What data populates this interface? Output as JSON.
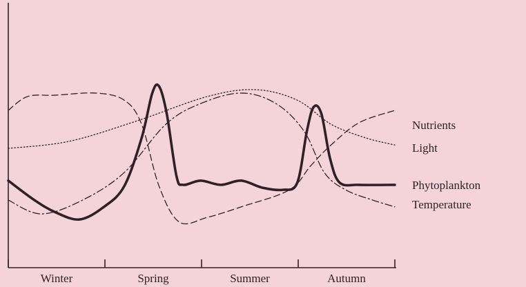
{
  "chart_data": {
    "type": "line",
    "categories": [
      "Winter",
      "Spring",
      "Summer",
      "Autumn"
    ],
    "xlim": [
      0,
      4
    ],
    "xticks": [
      0,
      1,
      2,
      3,
      4
    ],
    "ylim": [
      0,
      100
    ],
    "series": [
      {
        "name": "Nutrients",
        "color": "#2e2226",
        "style": "dashed",
        "width": 1.3,
        "x": [
          0,
          0.2,
          0.49,
          0.91,
          1.2,
          1.38,
          1.56,
          1.77,
          2.06,
          2.41,
          2.91,
          3.13,
          3.34,
          3.63,
          4
        ],
        "values": [
          60,
          65.3,
          65.8,
          66.6,
          63.9,
          54.7,
          31.1,
          17.4,
          19.2,
          23.2,
          29.7,
          38.9,
          46.8,
          55.3,
          60
        ]
      },
      {
        "name": "Light",
        "color": "#2e2226",
        "style": "dotted",
        "width": 1.3,
        "x": [
          0,
          0.63,
          1.34,
          2.06,
          2.56,
          2.99,
          3.34,
          3.7,
          4
        ],
        "values": [
          45.5,
          48.2,
          56.1,
          65.3,
          67.9,
          63.9,
          54.7,
          49.5,
          46.8
        ]
      },
      {
        "name": "Phytoplankton",
        "color": "#2e2226",
        "style": "solid",
        "width": 3.6,
        "x": [
          0,
          0.27,
          0.49,
          0.74,
          0.99,
          1.2,
          1.38,
          1.49,
          1.56,
          1.64,
          1.74,
          1.81,
          1.99,
          2.2,
          2.41,
          2.63,
          2.84,
          2.99,
          3.09,
          3.16,
          3.24,
          3.33,
          3.43,
          3.63,
          4
        ],
        "values": [
          33.2,
          25.8,
          21.1,
          18.4,
          23.2,
          31.1,
          49.5,
          66.6,
          69.2,
          58.7,
          35.0,
          31.6,
          33.2,
          31.6,
          33.2,
          30.5,
          29.7,
          32.4,
          52.1,
          61.3,
          58.7,
          41.6,
          32.4,
          31.6,
          31.6
        ]
      },
      {
        "name": "Temperature",
        "color": "#2e2226",
        "style": "dashdot",
        "width": 1.3,
        "x": [
          0,
          0.34,
          0.77,
          1.2,
          1.63,
          1.99,
          2.41,
          2.77,
          3.06,
          3.27,
          3.49,
          3.77,
          4
        ],
        "values": [
          25.8,
          20.5,
          25.8,
          36.3,
          54.7,
          62.6,
          66.6,
          62.6,
          52.1,
          36.3,
          29.7,
          25.8,
          23.2
        ]
      }
    ]
  }
}
